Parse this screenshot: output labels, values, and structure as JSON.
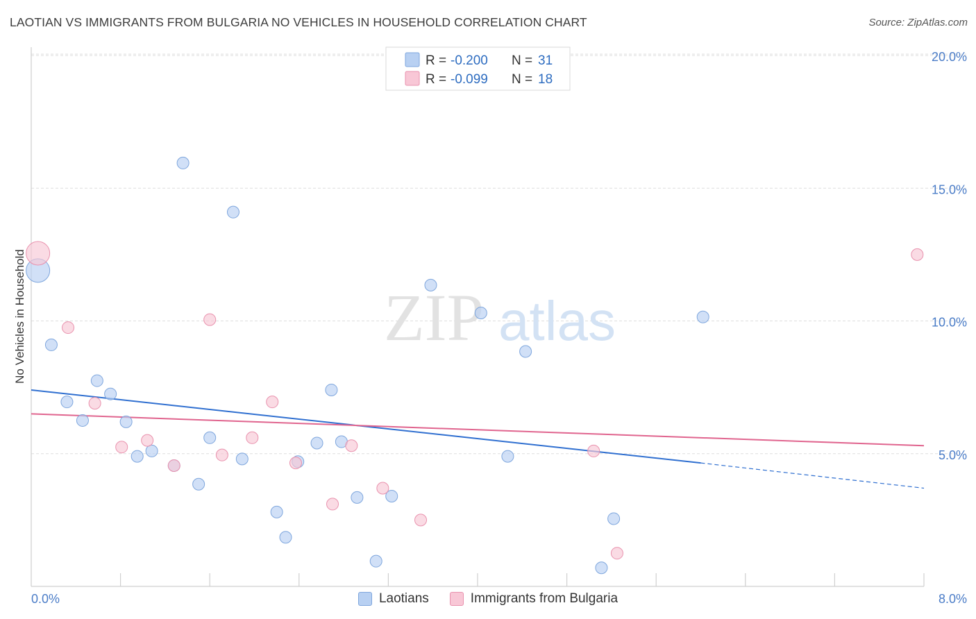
{
  "header": {
    "title": "LAOTIAN VS IMMIGRANTS FROM BULGARIA NO VEHICLES IN HOUSEHOLD CORRELATION CHART",
    "source": "Source: ZipAtlas.com"
  },
  "watermark": {
    "zip": "ZIP",
    "atlas": "atlas"
  },
  "legend": {
    "rows": [
      {
        "r_label": "R =",
        "r_value": "-0.200",
        "n_label": "N =",
        "n_value": "31"
      },
      {
        "r_label": "R =",
        "r_value": "-0.099",
        "n_label": "N =",
        "n_value": "18"
      }
    ]
  },
  "bottom_legend": {
    "laotians": "Laotians",
    "bulgaria": "Immigrants from Bulgaria"
  },
  "colors": {
    "laotians_fill": "#b8d0f2",
    "laotians_stroke": "#7ea6dd",
    "laotians_line": "#2f6fd0",
    "bulgaria_fill": "#f8c7d6",
    "bulgaria_stroke": "#e991ad",
    "bulgaria_line": "#e0648e",
    "grid": "#dddddd",
    "tick_text": "#4a7cc7"
  },
  "chart_data": {
    "type": "scatter",
    "title": "LAOTIAN VS IMMIGRANTS FROM BULGARIA NO VEHICLES IN HOUSEHOLD CORRELATION CHART",
    "xlabel": "",
    "ylabel": "No Vehicles in Household",
    "xlim": [
      0,
      8
    ],
    "ylim": [
      0,
      20
    ],
    "x_tick_labels": [
      "0.0%",
      "8.0%"
    ],
    "y_ticks": [
      5,
      10,
      15,
      20
    ],
    "y_tick_labels": [
      "5.0%",
      "10.0%",
      "15.0%",
      "20.0%"
    ],
    "grid": true,
    "legend_position": "top-center",
    "series": [
      {
        "name": "Laotians",
        "r": -0.2,
        "n": 31,
        "trend": {
          "x0": 0.0,
          "y0": 7.4,
          "x1": 6.0,
          "y1": 4.65,
          "dash_to_x": 8.0,
          "dash_to_y": 3.7
        },
        "points": [
          {
            "x": 0.06,
            "y": 11.9,
            "big": true
          },
          {
            "x": 0.18,
            "y": 9.1
          },
          {
            "x": 0.32,
            "y": 6.95
          },
          {
            "x": 0.46,
            "y": 6.25
          },
          {
            "x": 0.59,
            "y": 7.75
          },
          {
            "x": 0.71,
            "y": 7.25
          },
          {
            "x": 0.85,
            "y": 6.2
          },
          {
            "x": 0.95,
            "y": 4.9
          },
          {
            "x": 1.08,
            "y": 5.1
          },
          {
            "x": 1.28,
            "y": 4.55
          },
          {
            "x": 1.36,
            "y": 15.95
          },
          {
            "x": 1.5,
            "y": 3.85
          },
          {
            "x": 1.6,
            "y": 5.6
          },
          {
            "x": 1.81,
            "y": 14.1
          },
          {
            "x": 1.89,
            "y": 4.8
          },
          {
            "x": 2.2,
            "y": 2.8
          },
          {
            "x": 2.28,
            "y": 1.85
          },
          {
            "x": 2.39,
            "y": 4.7
          },
          {
            "x": 2.56,
            "y": 5.4
          },
          {
            "x": 2.69,
            "y": 7.4
          },
          {
            "x": 2.78,
            "y": 5.45
          },
          {
            "x": 2.92,
            "y": 3.35
          },
          {
            "x": 3.09,
            "y": 0.95
          },
          {
            "x": 3.23,
            "y": 3.4
          },
          {
            "x": 3.58,
            "y": 11.35
          },
          {
            "x": 4.03,
            "y": 10.3
          },
          {
            "x": 4.27,
            "y": 4.9
          },
          {
            "x": 4.43,
            "y": 8.85
          },
          {
            "x": 5.11,
            "y": 0.7
          },
          {
            "x": 5.22,
            "y": 2.55
          },
          {
            "x": 6.02,
            "y": 10.15
          }
        ]
      },
      {
        "name": "Immigrants from Bulgaria",
        "r": -0.099,
        "n": 18,
        "trend": {
          "x0": 0.0,
          "y0": 6.5,
          "x1": 8.0,
          "y1": 5.3
        },
        "points": [
          {
            "x": 0.06,
            "y": 12.55,
            "big": true
          },
          {
            "x": 0.33,
            "y": 9.75
          },
          {
            "x": 0.57,
            "y": 6.9
          },
          {
            "x": 0.81,
            "y": 5.25
          },
          {
            "x": 1.04,
            "y": 5.5
          },
          {
            "x": 1.28,
            "y": 4.55
          },
          {
            "x": 1.6,
            "y": 10.05
          },
          {
            "x": 1.71,
            "y": 4.95
          },
          {
            "x": 1.98,
            "y": 5.6
          },
          {
            "x": 2.16,
            "y": 6.95
          },
          {
            "x": 2.37,
            "y": 4.65
          },
          {
            "x": 2.7,
            "y": 3.1
          },
          {
            "x": 2.87,
            "y": 5.3
          },
          {
            "x": 3.15,
            "y": 3.7
          },
          {
            "x": 3.49,
            "y": 2.5
          },
          {
            "x": 5.04,
            "y": 5.1
          },
          {
            "x": 5.25,
            "y": 1.25
          },
          {
            "x": 7.94,
            "y": 12.5
          }
        ]
      }
    ]
  }
}
